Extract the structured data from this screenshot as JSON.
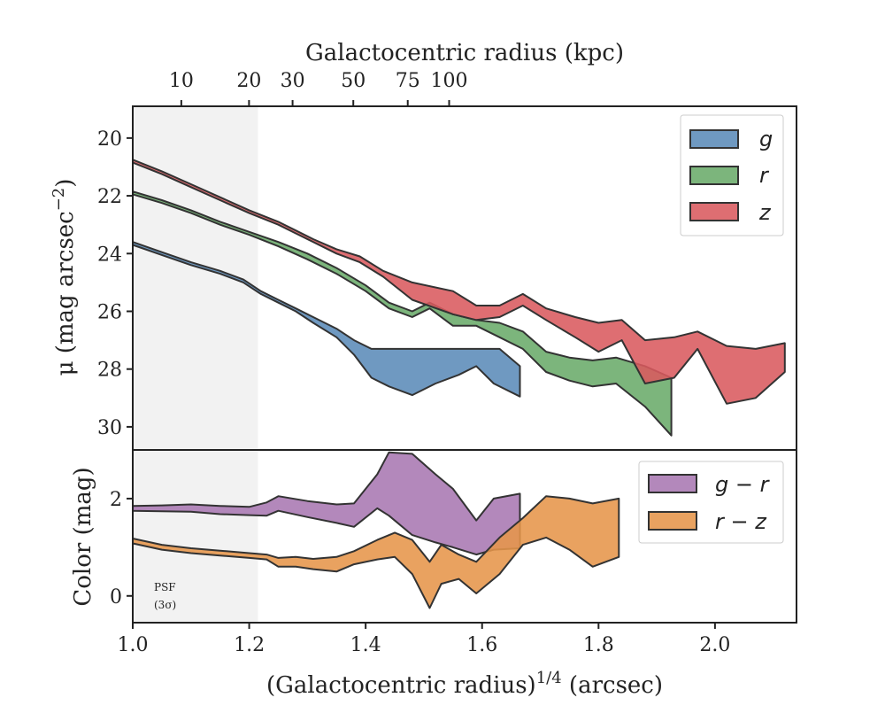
{
  "chart_data": [
    {
      "type": "area",
      "panel": "surface-brightness",
      "ylabel": "μ (mag arcsec⁻²)",
      "ylabel_base": "μ (mag arcsec",
      "ylabel_sup": "−2",
      "ylabel_end": ")",
      "top_xlabel": "Galactocentric radius (kpc)",
      "top_ticks": [
        {
          "label": "10",
          "x": 1.0834
        },
        {
          "label": "20",
          "x": 1.1997
        },
        {
          "label": "30",
          "x": 1.2745
        },
        {
          "label": "50",
          "x": 1.3788
        },
        {
          "label": "75",
          "x": 1.4723
        },
        {
          "label": "100",
          "x": 1.5434
        }
      ],
      "xlim": [
        1.0,
        2.14
      ],
      "ylim": [
        30.8,
        18.9
      ],
      "y_ticks": [
        20,
        22,
        24,
        26,
        28,
        30
      ],
      "y_inverted": true,
      "psf_shade_x": [
        1.0,
        1.215
      ],
      "legend_position": "top-right",
      "series": [
        {
          "name": "g",
          "color": "#5b8bb8",
          "upper": [
            [
              1.0,
              23.6
            ],
            [
              1.05,
              23.95
            ],
            [
              1.1,
              24.3
            ],
            [
              1.15,
              24.6
            ],
            [
              1.19,
              24.9
            ],
            [
              1.22,
              25.3
            ],
            [
              1.25,
              25.6
            ],
            [
              1.28,
              25.9
            ],
            [
              1.31,
              26.2
            ],
            [
              1.35,
              26.6
            ],
            [
              1.38,
              27.0
            ],
            [
              1.41,
              27.3
            ],
            [
              1.44,
              27.3
            ],
            [
              1.47,
              27.3
            ],
            [
              1.52,
              27.3
            ],
            [
              1.56,
              27.3
            ],
            [
              1.6,
              27.3
            ],
            [
              1.63,
              27.3
            ],
            [
              1.665,
              27.9
            ]
          ],
          "lower": [
            [
              1.0,
              23.7
            ],
            [
              1.05,
              24.05
            ],
            [
              1.1,
              24.4
            ],
            [
              1.15,
              24.7
            ],
            [
              1.19,
              25.0
            ],
            [
              1.22,
              25.4
            ],
            [
              1.25,
              25.7
            ],
            [
              1.28,
              26.0
            ],
            [
              1.31,
              26.4
            ],
            [
              1.35,
              26.9
            ],
            [
              1.38,
              27.5
            ],
            [
              1.41,
              28.3
            ],
            [
              1.44,
              28.6
            ],
            [
              1.48,
              28.9
            ],
            [
              1.52,
              28.5
            ],
            [
              1.56,
              28.2
            ],
            [
              1.59,
              27.9
            ],
            [
              1.62,
              28.5
            ],
            [
              1.665,
              28.95
            ]
          ]
        },
        {
          "name": "r",
          "color": "#6aab6a",
          "upper": [
            [
              1.0,
              21.85
            ],
            [
              1.05,
              22.15
            ],
            [
              1.1,
              22.5
            ],
            [
              1.15,
              22.9
            ],
            [
              1.2,
              23.25
            ],
            [
              1.25,
              23.6
            ],
            [
              1.3,
              24.0
            ],
            [
              1.35,
              24.5
            ],
            [
              1.4,
              25.1
            ],
            [
              1.44,
              25.7
            ],
            [
              1.48,
              26.0
            ],
            [
              1.51,
              25.7
            ],
            [
              1.55,
              26.1
            ],
            [
              1.59,
              26.3
            ],
            [
              1.63,
              26.4
            ],
            [
              1.67,
              26.7
            ],
            [
              1.71,
              27.4
            ],
            [
              1.75,
              27.6
            ],
            [
              1.79,
              27.7
            ],
            [
              1.83,
              27.6
            ],
            [
              1.88,
              27.9
            ],
            [
              1.925,
              28.3
            ]
          ],
          "lower": [
            [
              1.0,
              21.95
            ],
            [
              1.05,
              22.25
            ],
            [
              1.1,
              22.6
            ],
            [
              1.15,
              23.0
            ],
            [
              1.2,
              23.35
            ],
            [
              1.25,
              23.75
            ],
            [
              1.3,
              24.2
            ],
            [
              1.35,
              24.7
            ],
            [
              1.4,
              25.3
            ],
            [
              1.44,
              25.9
            ],
            [
              1.48,
              26.2
            ],
            [
              1.51,
              25.9
            ],
            [
              1.55,
              26.5
            ],
            [
              1.59,
              26.5
            ],
            [
              1.63,
              26.9
            ],
            [
              1.67,
              27.3
            ],
            [
              1.71,
              28.1
            ],
            [
              1.75,
              28.4
            ],
            [
              1.79,
              28.6
            ],
            [
              1.83,
              28.5
            ],
            [
              1.88,
              29.3
            ],
            [
              1.925,
              30.3
            ]
          ]
        },
        {
          "name": "z",
          "color": "#d95a5f",
          "upper": [
            [
              1.0,
              20.75
            ],
            [
              1.05,
              21.15
            ],
            [
              1.1,
              21.6
            ],
            [
              1.15,
              22.05
            ],
            [
              1.2,
              22.5
            ],
            [
              1.25,
              22.9
            ],
            [
              1.28,
              23.2
            ],
            [
              1.31,
              23.5
            ],
            [
              1.35,
              23.85
            ],
            [
              1.39,
              24.1
            ],
            [
              1.43,
              24.6
            ],
            [
              1.48,
              25.0
            ],
            [
              1.55,
              25.3
            ],
            [
              1.59,
              25.8
            ],
            [
              1.63,
              25.8
            ],
            [
              1.67,
              25.4
            ],
            [
              1.71,
              25.9
            ],
            [
              1.76,
              26.2
            ],
            [
              1.8,
              26.4
            ],
            [
              1.84,
              26.3
            ],
            [
              1.88,
              27.0
            ],
            [
              1.93,
              26.9
            ],
            [
              1.97,
              26.7
            ],
            [
              2.02,
              27.2
            ],
            [
              2.07,
              27.3
            ],
            [
              2.12,
              27.1
            ]
          ],
          "lower": [
            [
              1.0,
              20.85
            ],
            [
              1.05,
              21.25
            ],
            [
              1.1,
              21.7
            ],
            [
              1.15,
              22.15
            ],
            [
              1.2,
              22.6
            ],
            [
              1.25,
              23.0
            ],
            [
              1.28,
              23.3
            ],
            [
              1.31,
              23.6
            ],
            [
              1.35,
              24.0
            ],
            [
              1.39,
              24.3
            ],
            [
              1.43,
              24.8
            ],
            [
              1.48,
              25.6
            ],
            [
              1.55,
              26.1
            ],
            [
              1.59,
              26.3
            ],
            [
              1.63,
              26.2
            ],
            [
              1.67,
              25.8
            ],
            [
              1.71,
              26.3
            ],
            [
              1.76,
              26.9
            ],
            [
              1.8,
              27.4
            ],
            [
              1.84,
              27.0
            ],
            [
              1.88,
              28.5
            ],
            [
              1.93,
              28.3
            ],
            [
              1.97,
              27.3
            ],
            [
              2.02,
              29.2
            ],
            [
              2.07,
              29.0
            ],
            [
              2.12,
              28.1
            ]
          ]
        }
      ]
    },
    {
      "type": "area",
      "panel": "color",
      "ylabel": "Color (mag)",
      "xlabel": "(Galactocentric radius)¹ᐟ⁴ (arcsec)",
      "xlabel_base": "(Galactocentric radius)",
      "xlabel_sup": "1/4",
      "xlabel_end": " (arcsec)",
      "xlim": [
        1.0,
        2.14
      ],
      "ylim": [
        -0.55,
        3.0
      ],
      "y_ticks": [
        0,
        2
      ],
      "x_ticks": [
        1.0,
        1.2,
        1.4,
        1.6,
        1.8,
        2.0
      ],
      "x_tick_labels": [
        "1.0",
        "1.2",
        "1.4",
        "1.6",
        "1.8",
        "2.0"
      ],
      "psf_shade_x": [
        1.0,
        1.215
      ],
      "annotation": {
        "line1": "PSF",
        "line2": "(3σ)"
      },
      "legend_position": "top-right",
      "series": [
        {
          "name": "g − r",
          "name_a": "g",
          "name_op": " − ",
          "name_b": "r",
          "color": "#a877b2",
          "upper": [
            [
              1.0,
              1.85
            ],
            [
              1.05,
              1.86
            ],
            [
              1.1,
              1.88
            ],
            [
              1.15,
              1.85
            ],
            [
              1.2,
              1.83
            ],
            [
              1.23,
              1.92
            ],
            [
              1.25,
              2.05
            ],
            [
              1.3,
              1.95
            ],
            [
              1.35,
              1.88
            ],
            [
              1.38,
              1.9
            ],
            [
              1.42,
              2.5
            ],
            [
              1.44,
              2.95
            ],
            [
              1.48,
              2.92
            ],
            [
              1.52,
              2.5
            ],
            [
              1.55,
              2.2
            ],
            [
              1.59,
              1.55
            ],
            [
              1.62,
              2.0
            ],
            [
              1.665,
              2.1
            ]
          ],
          "lower": [
            [
              1.0,
              1.75
            ],
            [
              1.05,
              1.74
            ],
            [
              1.1,
              1.73
            ],
            [
              1.15,
              1.68
            ],
            [
              1.2,
              1.66
            ],
            [
              1.23,
              1.65
            ],
            [
              1.25,
              1.75
            ],
            [
              1.3,
              1.62
            ],
            [
              1.35,
              1.5
            ],
            [
              1.38,
              1.42
            ],
            [
              1.42,
              1.8
            ],
            [
              1.44,
              1.65
            ],
            [
              1.48,
              1.25
            ],
            [
              1.52,
              1.1
            ],
            [
              1.55,
              1.0
            ],
            [
              1.59,
              0.85
            ],
            [
              1.62,
              0.95
            ],
            [
              1.665,
              0.98
            ]
          ]
        },
        {
          "name": "r − z",
          "name_a": "r",
          "name_op": " − ",
          "name_b": "z",
          "color": "#e6954a",
          "upper": [
            [
              1.0,
              1.18
            ],
            [
              1.05,
              1.05
            ],
            [
              1.1,
              0.98
            ],
            [
              1.15,
              0.93
            ],
            [
              1.2,
              0.88
            ],
            [
              1.23,
              0.85
            ],
            [
              1.25,
              0.78
            ],
            [
              1.28,
              0.8
            ],
            [
              1.31,
              0.76
            ],
            [
              1.35,
              0.8
            ],
            [
              1.38,
              0.92
            ],
            [
              1.42,
              1.15
            ],
            [
              1.45,
              1.3
            ],
            [
              1.48,
              1.15
            ],
            [
              1.51,
              0.7
            ],
            [
              1.53,
              1.05
            ],
            [
              1.56,
              0.85
            ],
            [
              1.59,
              0.7
            ],
            [
              1.63,
              1.2
            ],
            [
              1.67,
              1.6
            ],
            [
              1.71,
              2.05
            ],
            [
              1.75,
              2.0
            ],
            [
              1.79,
              1.9
            ],
            [
              1.835,
              2.0
            ]
          ],
          "lower": [
            [
              1.0,
              1.08
            ],
            [
              1.05,
              0.95
            ],
            [
              1.1,
              0.88
            ],
            [
              1.15,
              0.83
            ],
            [
              1.2,
              0.78
            ],
            [
              1.23,
              0.75
            ],
            [
              1.25,
              0.6
            ],
            [
              1.28,
              0.6
            ],
            [
              1.31,
              0.55
            ],
            [
              1.35,
              0.5
            ],
            [
              1.38,
              0.65
            ],
            [
              1.42,
              0.75
            ],
            [
              1.45,
              0.8
            ],
            [
              1.48,
              0.45
            ],
            [
              1.51,
              -0.25
            ],
            [
              1.53,
              0.25
            ],
            [
              1.56,
              0.35
            ],
            [
              1.59,
              0.05
            ],
            [
              1.63,
              0.45
            ],
            [
              1.67,
              1.05
            ],
            [
              1.71,
              1.2
            ],
            [
              1.75,
              0.95
            ],
            [
              1.79,
              0.6
            ],
            [
              1.835,
              0.8
            ]
          ]
        }
      ]
    }
  ]
}
